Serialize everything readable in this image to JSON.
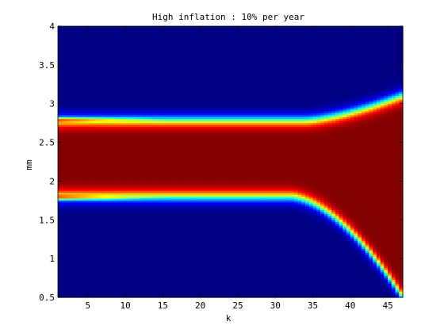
{
  "chart_data": {
    "type": "heatmap",
    "title": "High inflation : 10% per year",
    "xlabel": "k",
    "ylabel": "mm",
    "xlim": [
      1,
      47
    ],
    "ylim": [
      0.5,
      4
    ],
    "x_ticks": [
      5,
      10,
      15,
      20,
      25,
      30,
      35,
      40,
      45
    ],
    "y_ticks": [
      0.5,
      1,
      1.5,
      2,
      2.5,
      3,
      3.5,
      4
    ],
    "y_tick_labels": [
      "0.5",
      "1",
      "1.5",
      "2",
      "2.5",
      "3",
      "3.5",
      "4"
    ],
    "colormap": "jet",
    "value_range": [
      0,
      1
    ],
    "colors": {
      "low": "#00008f",
      "high": "#800000"
    },
    "regions": [
      {
        "name": "high-band-core",
        "k_range": [
          1,
          34
        ],
        "mm_range": [
          1.85,
          2.75
        ],
        "value": 1.0
      },
      {
        "name": "upper-edge-ridge",
        "k_range": [
          1,
          34
        ],
        "mm_center": 2.75,
        "value_peak": 0.75
      },
      {
        "name": "lower-edge-ridge",
        "k_range": [
          1,
          34
        ],
        "mm_center": 1.85,
        "value_peak": 0.75
      },
      {
        "name": "upper-expanding-front",
        "k_range": [
          34,
          47
        ],
        "mm_from": 2.78,
        "mm_to": 3.1
      },
      {
        "name": "lower-expanding-front",
        "k_range": [
          32,
          47
        ],
        "mm_from": 1.8,
        "mm_to": 0.5
      }
    ]
  }
}
